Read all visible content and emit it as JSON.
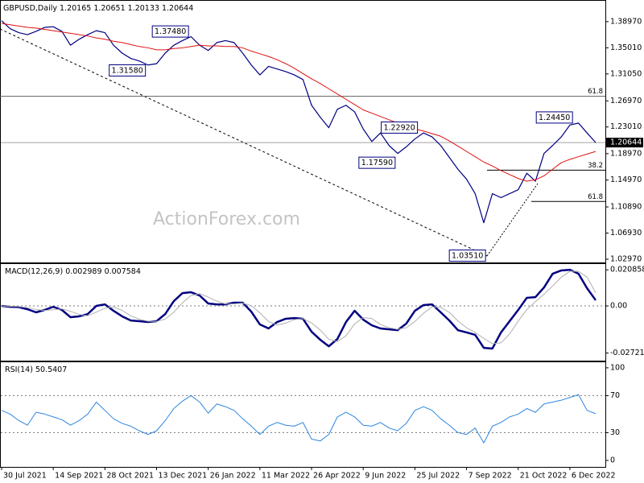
{
  "chart_data": [
    {
      "type": "line",
      "title": "GBPUSD,Daily",
      "ohlc": [
        1.20165,
        1.20651,
        1.20133,
        1.20644
      ],
      "watermark": "ActionForex.com",
      "categories": [
        "30 Jul 2021",
        null,
        null,
        null,
        null,
        null,
        "14 Sep 2021",
        null,
        null,
        null,
        null,
        null,
        "28 Oct 2021",
        null,
        null,
        null,
        null,
        null,
        "13 Dec 2021",
        null,
        null,
        null,
        null,
        null,
        "26 Jan 2022",
        null,
        null,
        null,
        null,
        null,
        "11 Mar 2022",
        null,
        null,
        null,
        null,
        null,
        "26 Apr 2022",
        null,
        null,
        null,
        null,
        null,
        "9 Jun 2022",
        null,
        null,
        null,
        null,
        null,
        "25 Jul 2022",
        null,
        null,
        null,
        null,
        null,
        "7 Sep 2022",
        null,
        null,
        null,
        null,
        null,
        "21 Oct 2022",
        null,
        null,
        null,
        null,
        null,
        "6 Dec 2022",
        null,
        null,
        null
      ],
      "series": [
        {
          "color": "#000080",
          "values": [
            1.391,
            1.379,
            1.373,
            1.37,
            1.375,
            1.381,
            1.382,
            1.375,
            1.354,
            1.363,
            1.37,
            1.376,
            1.373,
            1.354,
            1.342,
            1.334,
            1.33,
            1.324,
            1.326,
            1.342,
            1.354,
            1.361,
            1.367,
            1.354,
            1.346,
            1.358,
            1.361,
            1.358,
            1.342,
            1.324,
            1.309,
            1.322,
            1.318,
            1.314,
            1.309,
            1.302,
            1.263,
            1.245,
            1.229,
            1.257,
            1.263,
            1.253,
            1.227,
            1.208,
            1.221,
            1.202,
            1.19,
            1.2,
            1.212,
            1.221,
            1.215,
            1.202,
            1.184,
            1.166,
            1.151,
            1.129,
            1.085,
            1.129,
            1.123,
            1.129,
            1.135,
            1.16,
            1.148,
            1.19,
            1.202,
            1.215,
            1.233,
            1.236,
            1.221,
            1.2064
          ]
        },
        {
          "color": "#e01010",
          "values": [
            1.387,
            1.385,
            1.383,
            1.381,
            1.38,
            1.378,
            1.376,
            1.374,
            1.372,
            1.37,
            1.368,
            1.365,
            1.363,
            1.36,
            1.358,
            1.355,
            1.352,
            1.35,
            1.347,
            1.347,
            1.349,
            1.35,
            1.352,
            1.354,
            1.353,
            1.353,
            1.352,
            1.352,
            1.35,
            1.345,
            1.341,
            1.337,
            1.332,
            1.326,
            1.319,
            1.311,
            1.303,
            1.296,
            1.288,
            1.28,
            1.272,
            1.264,
            1.256,
            1.251,
            1.246,
            1.241,
            1.236,
            1.231,
            1.227,
            1.224,
            1.22,
            1.216,
            1.209,
            1.201,
            1.193,
            1.185,
            1.177,
            1.171,
            1.164,
            1.158,
            1.152,
            1.148,
            1.15,
            1.156,
            1.166,
            1.176,
            1.181,
            1.185,
            1.189,
            1.193
          ]
        }
      ],
      "ylim": [
        1.0248,
        1.4213
      ],
      "yticks": [
        {
          "value": 1.3897,
          "label": "1.38970"
        },
        {
          "value": 1.3501,
          "label": "1.35010"
        },
        {
          "value": 1.3105,
          "label": "1.31050"
        },
        {
          "value": 1.2697,
          "label": "1.26970"
        },
        {
          "value": 1.2301,
          "label": "1.23010"
        },
        {
          "value": 1.1897,
          "label": "1.18970"
        },
        {
          "value": 1.1497,
          "label": "1.14970"
        },
        {
          "value": 1.1089,
          "label": "1.10890"
        },
        {
          "value": 1.0693,
          "label": "1.06930"
        },
        {
          "value": 1.0297,
          "label": "1.02970"
        }
      ],
      "levels": [
        {
          "value": 1.2766,
          "label": "61.8"
        },
        {
          "value": 1.1647,
          "label": "38.2"
        },
        {
          "value": 1.1172,
          "label": "61.8"
        }
      ],
      "annotations": [
        {
          "value": 1.3748,
          "label": "1.37480",
          "index": 21.8,
          "side": "left"
        },
        {
          "value": 1.3158,
          "label": "1.31580",
          "index": 16.8,
          "side": "left"
        },
        {
          "value": 1.2292,
          "label": "1.22920",
          "index": 44,
          "side": "right"
        },
        {
          "value": 1.1759,
          "label": "1.17590",
          "index": 45.8,
          "side": "left"
        },
        {
          "value": 1.0351,
          "label": "1.03510",
          "index": 56.3,
          "side": "left"
        },
        {
          "value": 1.2445,
          "label": "1.24450",
          "index": 66.4,
          "side": "left"
        }
      ]
    },
    {
      "type": "line",
      "title": "MACD(12,26,9)",
      "title_values": [
        0.002989,
        0.007584
      ],
      "grid": true,
      "series": [
        {
          "color": "#000080",
          "values": [
            0,
            -0.0005,
            -0.0007,
            -0.0019,
            -0.0037,
            -0.0023,
            -0.0005,
            -0.0023,
            -0.0065,
            -0.006,
            -0.0047,
            0,
            0.0009,
            -0.0028,
            -0.006,
            -0.0084,
            -0.0088,
            -0.0093,
            -0.0088,
            -0.0047,
            0.0028,
            0.0074,
            0.0079,
            0.006,
            0.0014,
            0.0009,
            0.0009,
            0.0019,
            0.0019,
            -0.0033,
            -0.0107,
            -0.013,
            -0.0093,
            -0.0074,
            -0.007,
            -0.0074,
            -0.0149,
            -0.0195,
            -0.0233,
            -0.0191,
            -0.0093,
            -0.0028,
            -0.0079,
            -0.0112,
            -0.013,
            -0.0135,
            -0.014,
            -0.0102,
            -0.0028,
            0.0005,
            0.0009,
            -0.0037,
            -0.0084,
            -0.014,
            -0.0153,
            -0.0167,
            -0.0242,
            -0.0246,
            -0.0153,
            -0.0088,
            -0.0023,
            0.0047,
            0.0051,
            0.0107,
            0.0186,
            0.0205,
            0.0209,
            0.0186,
            0.0102,
            0.0033
          ]
        },
        {
          "color": "#b0b0b0",
          "values": [
            0,
            -0.0002,
            -0.0004,
            -0.001,
            -0.0021,
            -0.0026,
            -0.0022,
            -0.0017,
            -0.0031,
            -0.0049,
            -0.0057,
            -0.0036,
            -0.0013,
            -0.0006,
            -0.0026,
            -0.0057,
            -0.0077,
            -0.0088,
            -0.009,
            -0.0076,
            -0.0036,
            0.0018,
            0.006,
            0.0071,
            0.0051,
            0.0028,
            0.0011,
            0.0012,
            0.0016,
            0.0002,
            -0.004,
            -0.009,
            -0.011,
            -0.0099,
            -0.0079,
            -0.0073,
            -0.0098,
            -0.0139,
            -0.0192,
            -0.0206,
            -0.0172,
            -0.0104,
            -0.0067,
            -0.0073,
            -0.0107,
            -0.0126,
            -0.0135,
            -0.0126,
            -0.009,
            -0.0042,
            -0.0005,
            -0.0008,
            -0.0037,
            -0.0087,
            -0.0126,
            -0.0153,
            -0.0187,
            -0.0218,
            -0.0214,
            -0.0162,
            -0.0088,
            -0.0021,
            0.0025,
            0.0068,
            0.0115,
            0.0166,
            0.02,
            0.02,
            0.0166,
            0.0076
          ]
        }
      ],
      "ylim": [
        -0.0316,
        0.0242
      ],
      "yticks": [
        0.020858,
        {
          "value": 0,
          "label": "0.00"
        },
        -0.027213
      ]
    },
    {
      "type": "line",
      "title": "RSI(14)",
      "title_values": [
        50.5407
      ],
      "grid": true,
      "series": [
        {
          "color": "#2e86de",
          "values": [
            54,
            50,
            43,
            38,
            52,
            50,
            47,
            44,
            38,
            43,
            50,
            63,
            54,
            45,
            40,
            37,
            32,
            28,
            32,
            43,
            56,
            64,
            70,
            63,
            51,
            61,
            58,
            54,
            45,
            37,
            28,
            37,
            41,
            38,
            37,
            41,
            23,
            21,
            28,
            47,
            52,
            47,
            38,
            37,
            41,
            35,
            32,
            40,
            54,
            58,
            54,
            45,
            38,
            30,
            28,
            35,
            19,
            37,
            41,
            47,
            50,
            56,
            52,
            61,
            63,
            65,
            68,
            71,
            54,
            50.5
          ]
        }
      ],
      "ylim": [
        -7,
        106
      ],
      "yticks": [
        100,
        70,
        30,
        0
      ]
    }
  ]
}
